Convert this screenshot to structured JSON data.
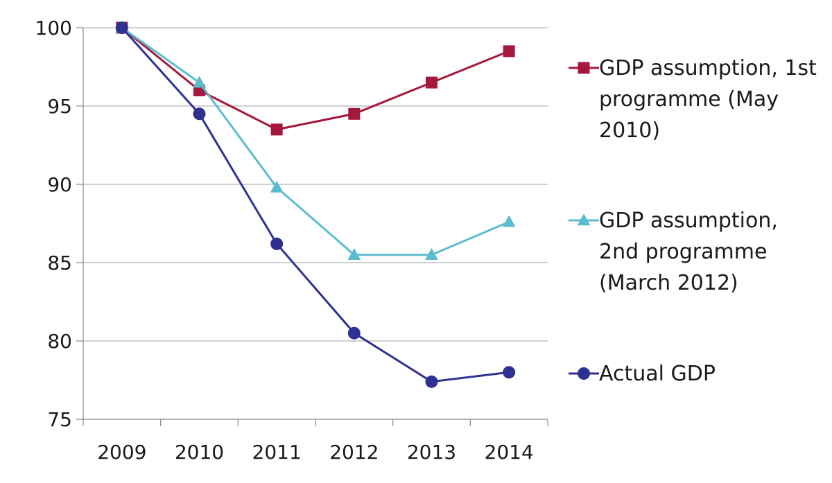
{
  "chart_data": {
    "type": "line",
    "title": "",
    "xlabel": "",
    "ylabel": "",
    "categories": [
      "2009",
      "2010",
      "2011",
      "2012",
      "2013",
      "2014"
    ],
    "ylim": [
      75,
      100
    ],
    "yticks": [
      "75",
      "80",
      "85",
      "90",
      "95",
      "100"
    ],
    "grid": "horizontal",
    "legend_position": "right",
    "series": [
      {
        "name": "GDP assumption, 1st programme (May 2010)",
        "color": "#a6173c",
        "marker": "square",
        "values": [
          100,
          96.0,
          93.5,
          94.5,
          96.5,
          98.5
        ]
      },
      {
        "name": "GDP assumption, 2nd programme (March 2012)",
        "color": "#5bbccd",
        "marker": "triangle",
        "values": [
          100,
          96.5,
          89.8,
          85.5,
          85.5,
          87.6
        ]
      },
      {
        "name": "Actual GDP",
        "color": "#2e3192",
        "marker": "circle",
        "values": [
          100,
          94.5,
          86.2,
          80.5,
          77.4,
          78.0
        ]
      }
    ]
  }
}
